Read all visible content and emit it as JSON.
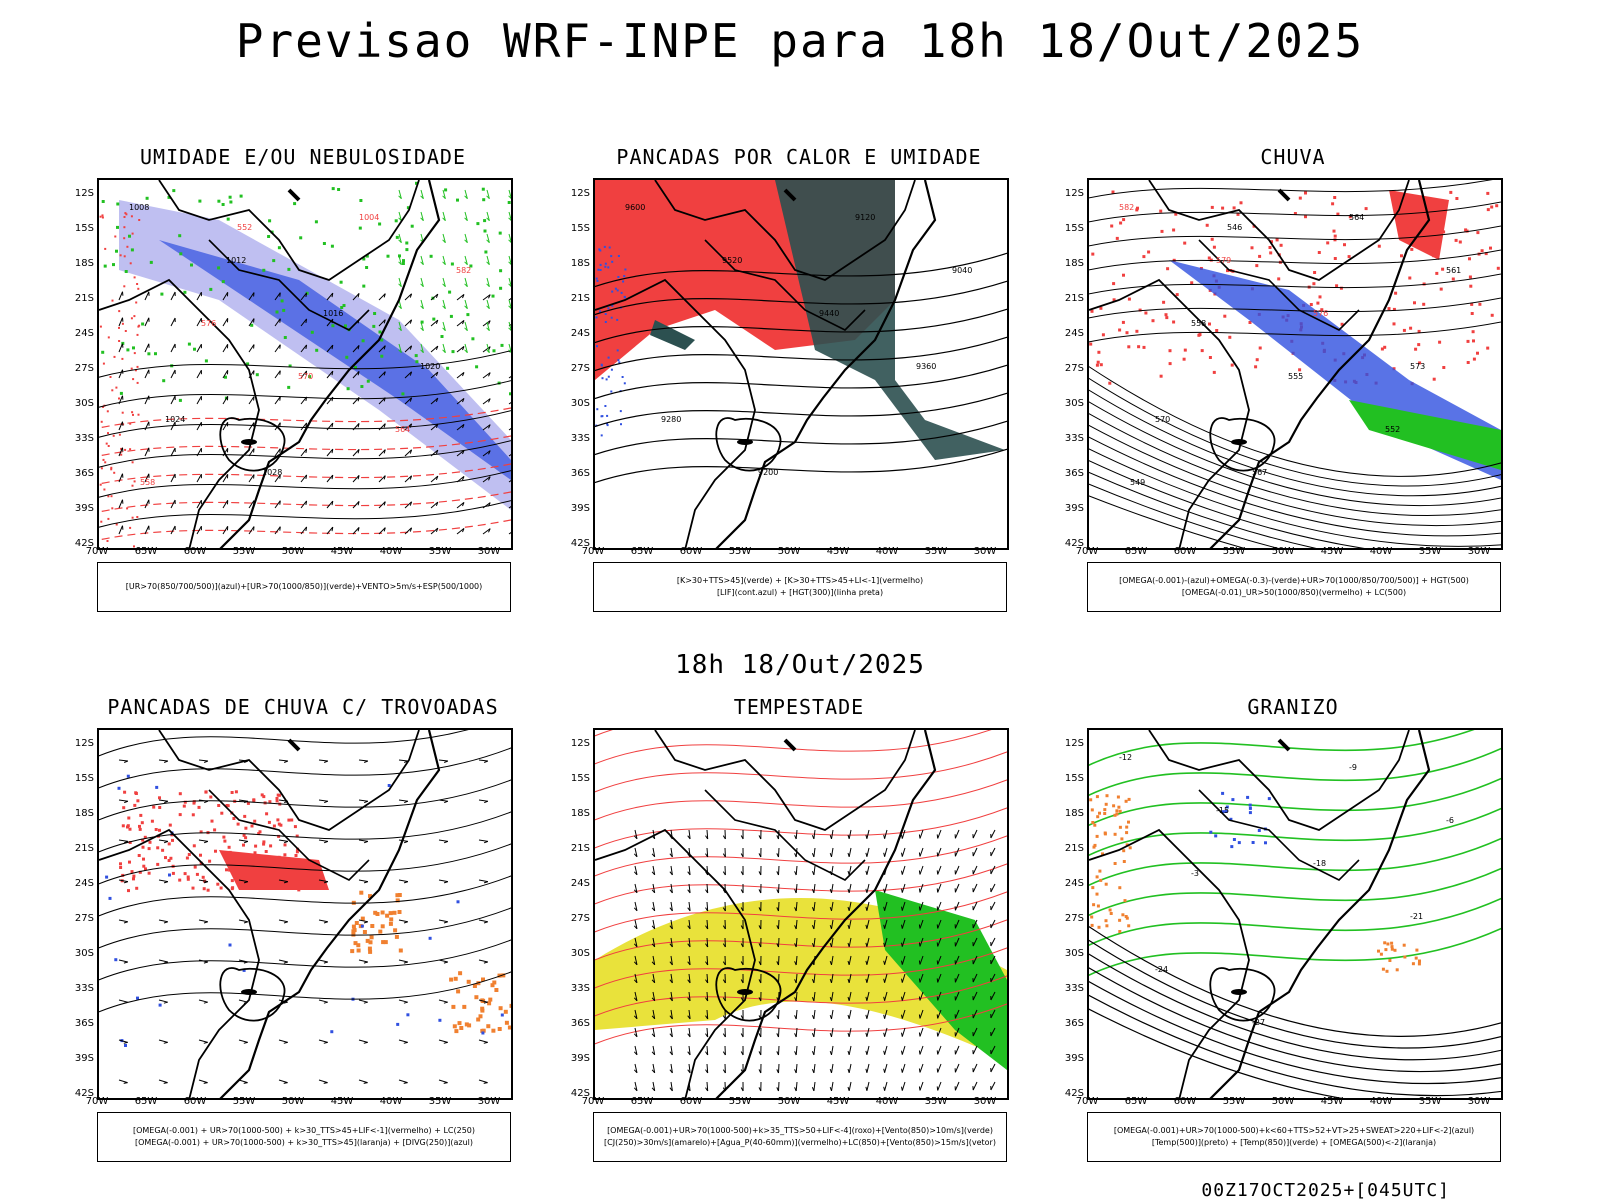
{
  "header": {
    "title": "Previsao WRF-INPE  para 18h 18/Out/2025",
    "mid_title": "18h 18/Out/2025"
  },
  "footer": {
    "run_info": "00Z17OCT2025+[045UTC]"
  },
  "axes": {
    "lat_labels": [
      "12S",
      "15S",
      "18S",
      "21S",
      "24S",
      "27S",
      "30S",
      "33S",
      "36S",
      "39S",
      "42S"
    ],
    "lon_labels": [
      "70W",
      "65W",
      "60W",
      "55W",
      "50W",
      "45W",
      "40W",
      "35W",
      "30W"
    ]
  },
  "colors": {
    "blue": "#3050e0",
    "green": "#22c022",
    "red": "#f04040",
    "yellow": "#e8e030",
    "orange": "#f08030",
    "lavender": "#b8b8f0",
    "darkteal": "#2c5050"
  },
  "panels": [
    {
      "title": "UMIDADE E/OU NEBULOSIDADE",
      "legend": [
        "[UR>70(850/700/500)](azul)+[UR>70(1000/850)](verde)+VENTO>5m/s+ESP(500/1000)"
      ],
      "labels": [
        "1008",
        "1012",
        "1016",
        "1020",
        "1024",
        "1028",
        "1004",
        "582",
        "576",
        "570",
        "564",
        "558",
        "552"
      ]
    },
    {
      "title": "PANCADAS POR CALOR E UMIDADE",
      "legend": [
        "[K>30+TTS>45](verde) + [K>30+TTS>45+LI<-1](vermelho)",
        "[LIF](cont.azul) + [HGT(300)](linha preta)"
      ],
      "labels": [
        "9600",
        "9520",
        "9440",
        "9360",
        "9280",
        "9200",
        "9120",
        "9040"
      ]
    },
    {
      "title": "CHUVA",
      "legend": [
        "[OMEGA(-0.001)-(azul)+OMEGA(-0.3)-(verde)+UR>70(1000/850/700/500)] + HGT(500)",
        "[OMEGA(-0.01)_UR>50(1000/850)(vermelho) + LC(500)"
      ],
      "labels": [
        "582",
        "579",
        "576",
        "573",
        "570",
        "567",
        "564",
        "561",
        "558",
        "555",
        "552",
        "549",
        "546"
      ]
    },
    {
      "title": "PANCADAS DE CHUVA C/ TROVOADAS",
      "legend": [
        "[OMEGA(-0.001) + UR>70(1000-500) + k>30_TTS>45+LIF<-1](vermelho) + LC(250)",
        "[OMEGA(-0.001) + UR>70(1000-500) + k>30_TTS>45](laranja) + [DIVG(250)](azul)"
      ],
      "labels": []
    },
    {
      "title": "TEMPESTADE",
      "legend": [
        "[OMEGA(-0.001)+UR>70(1000-500)+k>35_TTS>50+LIF<-4](roxo)+[Vento(850)>10m/s](verde)",
        "[CJ(250)>30m/s](amarelo)+[Agua_P(40-60mm)](vermelho)+LC(850)+[Vento(850)>15m/s](vetor)"
      ],
      "labels": []
    },
    {
      "title": "GRANIZO",
      "legend": [
        "[OMEGA(-0.001)+UR>70(1000-500)+k<60+TTS>52+VT>25+SWEAT>220+LIF<-2](azul)",
        "[Temp(500)](preto) + [Temp(850)](verde) + [OMEGA(500)<-2](laranja)"
      ],
      "labels": [
        "-12",
        "-15",
        "-18",
        "-21",
        "-24",
        "-27",
        "-9",
        "-6",
        "-3"
      ]
    }
  ]
}
